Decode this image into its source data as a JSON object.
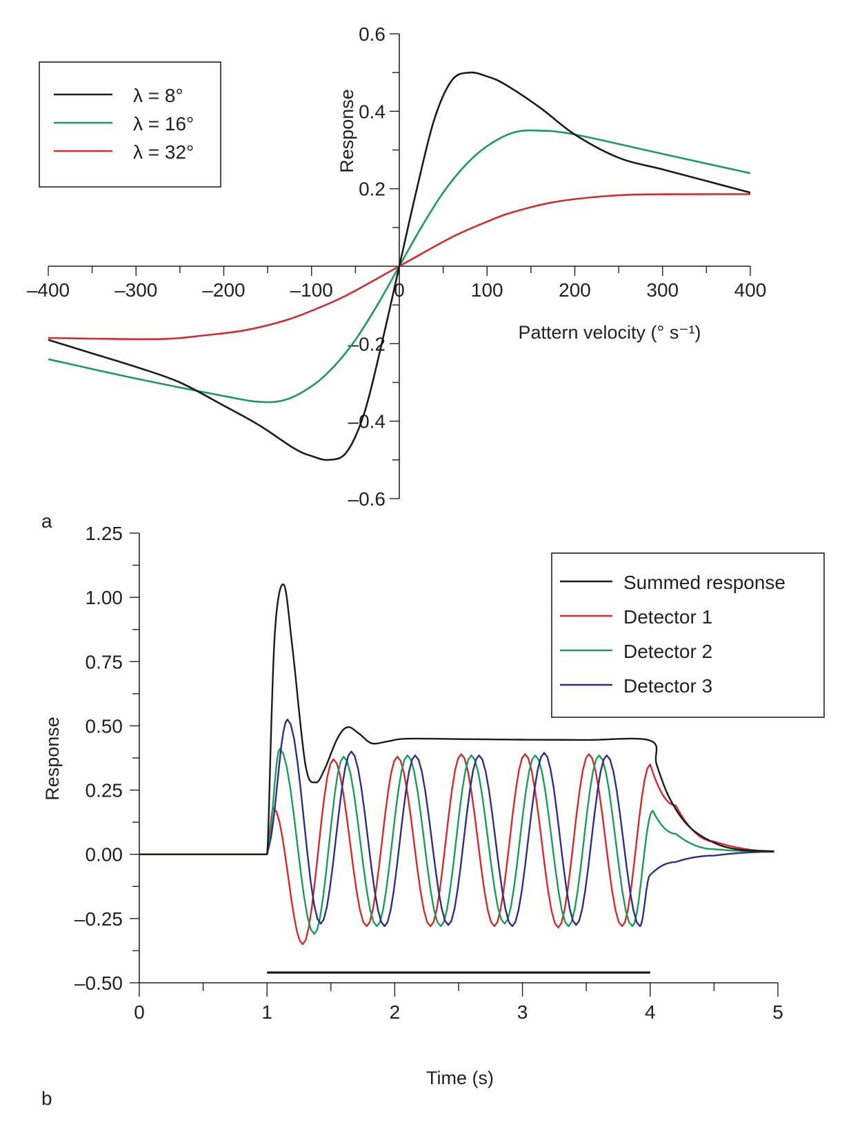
{
  "chart_data": [
    {
      "panel_label": "a",
      "type": "line",
      "xlabel": "Pattern velocity (° s⁻¹)",
      "ylabel": "Response",
      "xlim": [
        -400,
        400
      ],
      "ylim": [
        -0.6,
        0.6
      ],
      "x_ticks": [
        -400,
        -300,
        -200,
        -100,
        0,
        100,
        200,
        300,
        400
      ],
      "x_tick_labels": [
        "–400",
        "–300",
        "–200",
        "–100",
        "0",
        "100",
        "200",
        "300",
        "400"
      ],
      "y_ticks": [
        0.6,
        0.4,
        0.2,
        -0.2,
        -0.4,
        -0.6
      ],
      "y_tick_labels": [
        "0.6",
        "0.4",
        "0.2",
        "–0.2",
        "–0.4",
        "–0.6"
      ],
      "legend_position": "top-left",
      "legend": [
        "λ = 8°",
        "λ = 16°",
        "λ = 32°"
      ],
      "series": [
        {
          "name": "λ = 8°",
          "color": "#1a1a1a",
          "x": [
            -400,
            -350,
            -300,
            -250,
            -200,
            -160,
            -120,
            -100,
            -80,
            -60,
            -40,
            -20,
            0,
            20,
            40,
            60,
            80,
            100,
            120,
            160,
            200,
            250,
            300,
            350,
            400
          ],
          "y": [
            -0.19,
            -0.225,
            -0.26,
            -0.3,
            -0.36,
            -0.41,
            -0.47,
            -0.49,
            -0.5,
            -0.48,
            -0.38,
            -0.2,
            0,
            0.2,
            0.38,
            0.48,
            0.5,
            0.49,
            0.47,
            0.41,
            0.34,
            0.28,
            0.25,
            0.22,
            0.19
          ]
        },
        {
          "name": "λ = 16°",
          "color": "#1b9a5a",
          "x": [
            -400,
            -300,
            -200,
            -160,
            -130,
            -100,
            -75,
            -50,
            -25,
            0,
            25,
            50,
            75,
            100,
            130,
            160,
            200,
            300,
            400
          ],
          "y": [
            -0.24,
            -0.29,
            -0.335,
            -0.35,
            -0.345,
            -0.31,
            -0.26,
            -0.19,
            -0.1,
            0,
            0.1,
            0.19,
            0.26,
            0.31,
            0.345,
            0.35,
            0.34,
            0.29,
            0.24
          ]
        },
        {
          "name": "λ = 32°",
          "color": "#d42a2e",
          "x": [
            -400,
            -350,
            -270,
            -220,
            -175,
            -130,
            -100,
            -60,
            0,
            60,
            100,
            130,
            175,
            220,
            270,
            350,
            400
          ],
          "y": [
            -0.185,
            -0.187,
            -0.188,
            -0.178,
            -0.165,
            -0.14,
            -0.115,
            -0.075,
            0,
            0.075,
            0.115,
            0.14,
            0.165,
            0.178,
            0.185,
            0.186,
            0.186
          ]
        }
      ]
    },
    {
      "panel_label": "b",
      "type": "line",
      "xlabel": "Time (s)",
      "ylabel": "Response",
      "xlim": [
        0,
        5
      ],
      "ylim": [
        -0.5,
        1.25
      ],
      "x_ticks": [
        0,
        1,
        2,
        3,
        4,
        5
      ],
      "x_tick_labels": [
        "0",
        "1",
        "2",
        "3",
        "4",
        "5"
      ],
      "y_ticks": [
        1.25,
        1.0,
        0.75,
        0.5,
        0.25,
        0.0,
        -0.25,
        -0.5
      ],
      "y_tick_labels": [
        "1.25",
        "1.00",
        "0.75",
        "0.50",
        "0.25",
        "0.00",
        "–0.25",
        "–0.50"
      ],
      "legend_position": "top-right",
      "legend": [
        "Summed response",
        "Detector 1",
        "Detector 2",
        "Detector 3"
      ],
      "stimulus_bar": {
        "start": 1,
        "end": 4,
        "level": -0.46
      },
      "oscillation": {
        "period_s": 0.5,
        "stimulus_on": 1.0,
        "stimulus_off": 4.0
      },
      "series": [
        {
          "name": "Summed response",
          "color": "#1a1a1a",
          "x": [
            0,
            1.0,
            1.01,
            1.06,
            1.13,
            1.2,
            1.3,
            1.38,
            1.45,
            1.55,
            1.63,
            1.72,
            1.82,
            1.95,
            2.1,
            2.6,
            3.0,
            3.5,
            4.0,
            4.05,
            4.15,
            4.3,
            4.5,
            4.7,
            4.97
          ],
          "y": [
            0,
            0,
            0.1,
            0.85,
            1.05,
            0.8,
            0.35,
            0.28,
            0.33,
            0.45,
            0.495,
            0.47,
            0.432,
            0.44,
            0.45,
            0.448,
            0.446,
            0.445,
            0.443,
            0.35,
            0.22,
            0.11,
            0.045,
            0.018,
            0.012
          ]
        },
        {
          "name": "Detector 1",
          "color": "#d42a2e",
          "peaks": [
            [
              1.05,
              0.18
            ],
            [
              1.52,
              0.37
            ],
            [
              2.02,
              0.38
            ],
            [
              2.52,
              0.39
            ],
            [
              3.02,
              0.39
            ],
            [
              3.52,
              0.39
            ],
            [
              4.0,
              0.35
            ]
          ],
          "troughs": [
            [
              1.28,
              -0.35
            ],
            [
              1.78,
              -0.28
            ],
            [
              2.28,
              -0.28
            ],
            [
              2.78,
              -0.28
            ],
            [
              3.28,
              -0.285
            ],
            [
              3.78,
              -0.28
            ]
          ],
          "decay": [
            [
              4.0,
              0.35
            ],
            [
              4.2,
              0.19
            ],
            [
              4.5,
              0.05
            ],
            [
              4.97,
              0.012
            ]
          ]
        },
        {
          "name": "Detector 2",
          "color": "#1b9a5a",
          "peaks": [
            [
              1.1,
              0.41
            ],
            [
              1.6,
              0.38
            ],
            [
              2.1,
              0.385
            ],
            [
              2.6,
              0.385
            ],
            [
              3.1,
              0.385
            ],
            [
              3.6,
              0.385
            ],
            [
              4.02,
              0.17
            ]
          ],
          "troughs": [
            [
              1.37,
              -0.31
            ],
            [
              1.86,
              -0.28
            ],
            [
              2.36,
              -0.28
            ],
            [
              2.86,
              -0.27
            ],
            [
              3.36,
              -0.28
            ],
            [
              3.86,
              -0.28
            ]
          ],
          "decay": [
            [
              4.02,
              0.17
            ],
            [
              4.2,
              0.08
            ],
            [
              4.5,
              0.02
            ],
            [
              4.97,
              0.01
            ]
          ]
        },
        {
          "name": "Detector 3",
          "color": "#2b2f85",
          "peaks": [
            [
              1.16,
              0.525
            ],
            [
              1.66,
              0.4
            ],
            [
              2.16,
              0.385
            ],
            [
              2.66,
              0.385
            ],
            [
              3.17,
              0.395
            ],
            [
              3.66,
              0.385
            ]
          ],
          "troughs": [
            [
              1.42,
              -0.27
            ],
            [
              1.92,
              -0.28
            ],
            [
              2.42,
              -0.275
            ],
            [
              2.92,
              -0.28
            ],
            [
              3.42,
              -0.275
            ],
            [
              3.92,
              -0.28
            ]
          ],
          "decay": [
            [
              4.0,
              -0.08
            ],
            [
              4.2,
              -0.03
            ],
            [
              4.5,
              -0.005
            ],
            [
              4.97,
              0.01
            ]
          ]
        }
      ]
    }
  ]
}
